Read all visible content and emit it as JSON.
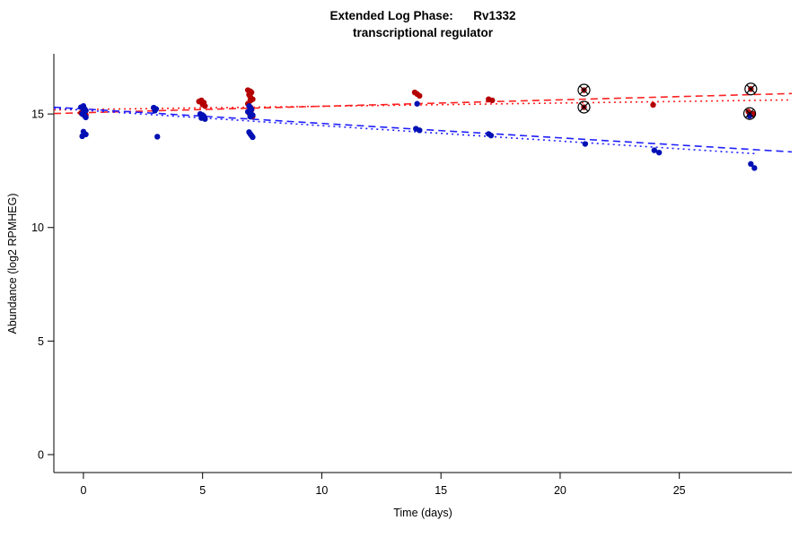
{
  "chart_data": {
    "type": "scatter",
    "title": "Extended Log Phase:      Rv1332",
    "subtitle": "transcriptional regulator",
    "xlabel": "Time  (days)",
    "ylabel": "Abundance  (log2 RPMHEG)",
    "xlim": [
      -1.24,
      29.72
    ],
    "ylim": [
      -0.79,
      17.65
    ],
    "xticks": [
      0,
      5,
      10,
      15,
      20,
      25
    ],
    "yticks": [
      0,
      5,
      10,
      15
    ],
    "grid": false,
    "legend": "none",
    "series": [
      {
        "name": "red-series",
        "color": "#b40000",
        "marker": "filled-circle",
        "points": [
          [
            -0.1,
            15.05
          ],
          [
            0,
            15.2
          ],
          [
            0.05,
            15.1
          ],
          [
            0.1,
            14.95
          ],
          [
            3,
            15.2
          ],
          [
            4.85,
            15.55
          ],
          [
            4.95,
            15.6
          ],
          [
            5.05,
            15.5
          ],
          [
            5,
            15.42
          ],
          [
            5.1,
            15.35
          ],
          [
            6.9,
            16.05
          ],
          [
            7,
            16.0
          ],
          [
            7.05,
            15.95
          ],
          [
            6.95,
            15.85
          ],
          [
            7,
            15.75
          ],
          [
            7.1,
            15.65
          ],
          [
            7,
            15.58
          ],
          [
            6.9,
            15.45
          ],
          [
            7,
            15.3
          ],
          [
            7.05,
            15.18
          ],
          [
            6.95,
            15.05
          ],
          [
            7,
            14.95
          ],
          [
            7.1,
            14.9
          ],
          [
            13.9,
            15.95
          ],
          [
            14,
            15.88
          ],
          [
            14.1,
            15.8
          ],
          [
            17,
            15.65
          ],
          [
            17.15,
            15.6
          ],
          [
            21,
            16.05
          ],
          [
            21,
            15.3
          ],
          [
            23.9,
            15.4
          ],
          [
            28,
            16.1
          ],
          [
            27.9,
            15.1
          ],
          [
            28.1,
            15.0
          ]
        ]
      },
      {
        "name": "blue-series",
        "color": "#0010b4",
        "marker": "filled-circle",
        "points": [
          [
            -0.1,
            15.3
          ],
          [
            0,
            15.35
          ],
          [
            0.05,
            15.22
          ],
          [
            0.1,
            15.15
          ],
          [
            0,
            15.08
          ],
          [
            -0.05,
            15.0
          ],
          [
            0.05,
            14.92
          ],
          [
            0.1,
            14.85
          ],
          [
            0,
            14.22
          ],
          [
            0.1,
            14.1
          ],
          [
            -0.05,
            14.02
          ],
          [
            2.95,
            15.28
          ],
          [
            3.05,
            15.22
          ],
          [
            3,
            15.15
          ],
          [
            3.1,
            14.0
          ],
          [
            4.9,
            15.0
          ],
          [
            5,
            14.95
          ],
          [
            5.05,
            14.9
          ],
          [
            4.95,
            14.82
          ],
          [
            5.1,
            14.78
          ],
          [
            6.95,
            15.35
          ],
          [
            7,
            15.28
          ],
          [
            7.05,
            15.2
          ],
          [
            6.9,
            15.1
          ],
          [
            7,
            15.02
          ],
          [
            7.1,
            14.95
          ],
          [
            7,
            14.88
          ],
          [
            6.95,
            14.2
          ],
          [
            7,
            14.12
          ],
          [
            7.05,
            14.05
          ],
          [
            7.1,
            13.98
          ],
          [
            14,
            15.45
          ],
          [
            13.95,
            14.35
          ],
          [
            14.1,
            14.28
          ],
          [
            17,
            14.12
          ],
          [
            17.1,
            14.05
          ],
          [
            21.05,
            13.68
          ],
          [
            23.95,
            13.4
          ],
          [
            24.15,
            13.3
          ],
          [
            27.95,
            14.92
          ],
          [
            28,
            12.8
          ],
          [
            28.15,
            12.62
          ]
        ]
      }
    ],
    "flagged_points": {
      "marker": "circle-x",
      "color": "#000000",
      "points": [
        [
          21,
          16.05
        ],
        [
          21,
          15.3
        ],
        [
          28,
          16.1
        ],
        [
          27.95,
          15.02
        ]
      ]
    },
    "trend_lines": [
      {
        "series": "red-series",
        "style": "dashed",
        "color": "#ff2020",
        "from": [
          -1.24,
          15.02
        ],
        "to": [
          29.72,
          15.9
        ]
      },
      {
        "series": "red-series",
        "style": "dotted",
        "color": "#ff2020",
        "from": [
          -1.24,
          15.18
        ],
        "to": [
          29.72,
          15.62
        ]
      },
      {
        "series": "blue-series",
        "style": "dashed",
        "color": "#2020ff",
        "from": [
          -1.24,
          15.3
        ],
        "to": [
          29.72,
          13.33
        ]
      },
      {
        "series": "blue-series",
        "style": "dotted",
        "color": "#2020ff",
        "from": [
          -1.24,
          15.25
        ],
        "to": [
          28.2,
          13.25
        ]
      }
    ]
  }
}
